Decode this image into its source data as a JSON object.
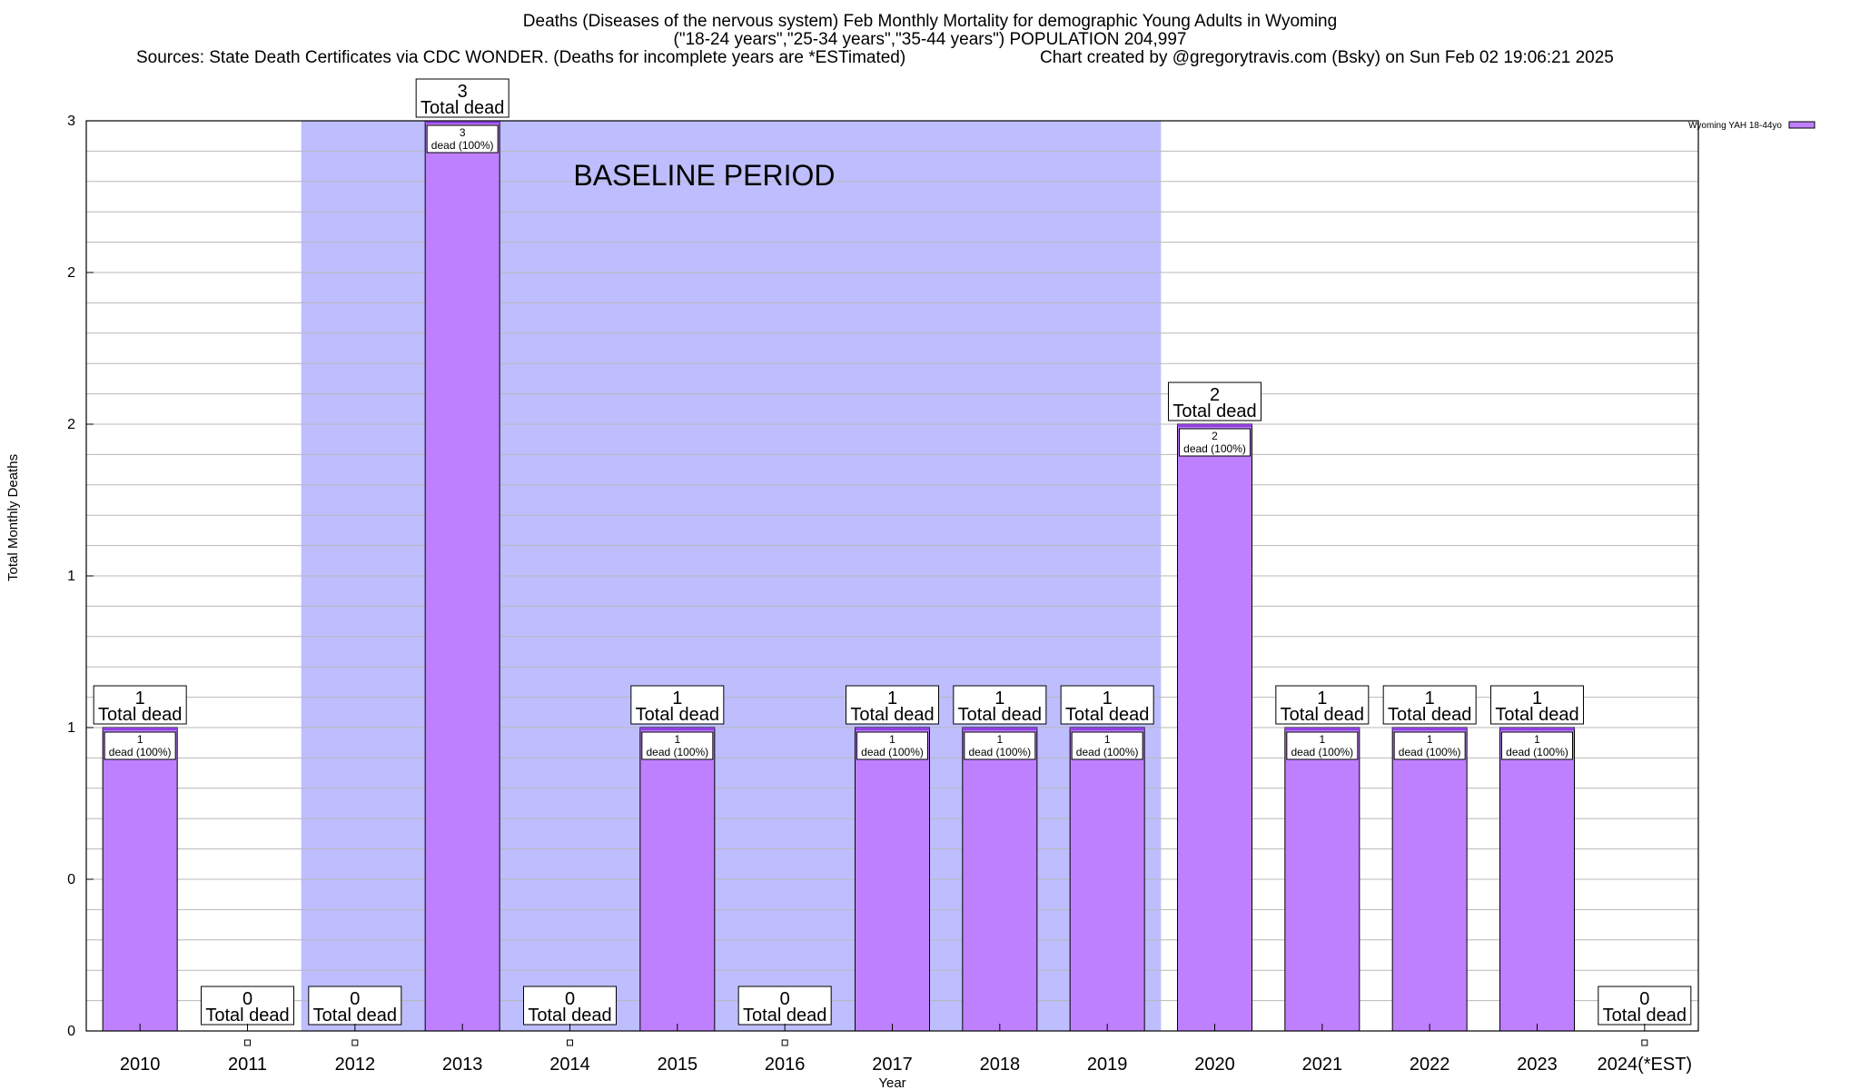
{
  "header": {
    "title_line1": "Deaths (Diseases of the nervous system) Feb Monthly Mortality for demographic Young Adults in Wyoming",
    "title_line2": "(\"18-24 years\",\"25-34 years\",\"35-44 years\") POPULATION 204,997",
    "sources": "Sources: State Death Certificates via CDC WONDER. (Deaths for incomplete years are *ESTimated)",
    "credit": "Chart created by @gregorytravis.com (Bsky) on Sun Feb 02 19:06:21 2025"
  },
  "chart_data": {
    "type": "bar",
    "xlabel": "Year",
    "ylabel": "Total Monthly Deaths",
    "ylim": [
      0,
      3
    ],
    "ytick_labels": [
      "0",
      "0",
      "1",
      "1",
      "2",
      "2",
      "3"
    ],
    "categories": [
      "2010",
      "2011",
      "2012",
      "2013",
      "2014",
      "2015",
      "2016",
      "2017",
      "2018",
      "2019",
      "2020",
      "2021",
      "2022",
      "2023",
      "2024(*EST)"
    ],
    "series": [
      {
        "name": "Wyoming YAH 18-44yo",
        "values": [
          1,
          0,
          0,
          3,
          0,
          1,
          0,
          1,
          1,
          1,
          2,
          1,
          1,
          1,
          0
        ]
      }
    ],
    "total_label_suffix": "Total dead",
    "bar_label_suffix": "dead (100%)",
    "baseline": {
      "label": "BASELINE PERIOD",
      "start": "2012",
      "end": "2019"
    },
    "colors": {
      "bar": "#bf80ff",
      "bar_edge": "#9040e0",
      "baseline_fill": "#bebeff"
    },
    "legend_position": "top-right",
    "grid": true
  }
}
